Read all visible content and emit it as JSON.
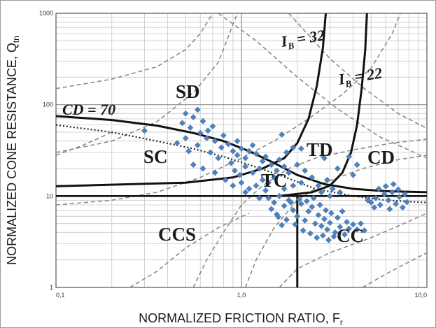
{
  "chart_data": {
    "type": "scatter",
    "xlabel": "NORMALIZED FRICTION RATIO, Fr",
    "xlabel_main": "NORMALIZED FRICTION RATIO, F",
    "xlabel_sub": "r",
    "ylabel_main": "NORMALIZED CONE RESISTANCE, Q",
    "ylabel_sub": "tn",
    "xscale": "log",
    "yscale": "log",
    "xlim": [
      0.1,
      10
    ],
    "ylim": [
      1,
      1000
    ],
    "grid": true,
    "x_ticks": [
      {
        "value": 0.1,
        "label": "0,1"
      },
      {
        "value": 1,
        "label": "1,0"
      },
      {
        "value": 10,
        "label": "10,0"
      }
    ],
    "y_ticks": [
      {
        "value": 1,
        "label": "1"
      },
      {
        "value": 10,
        "label": "10"
      },
      {
        "value": 100,
        "label": "100"
      },
      {
        "value": 1000,
        "label": "1000"
      }
    ],
    "zones": [
      "SD",
      "SC",
      "TD",
      "CD",
      "CCS",
      "CC",
      "TC"
    ],
    "curve_labels": [
      "CD = 70",
      "IB = 32",
      "IB = 22"
    ],
    "series": [
      {
        "marker": "diamond",
        "color": "#4F81BD",
        "points": [
          [
            0.5,
            80
          ],
          [
            0.55,
            73
          ],
          [
            0.58,
            88
          ],
          [
            0.62,
            66
          ],
          [
            0.53,
            56
          ],
          [
            0.6,
            49
          ],
          [
            0.48,
            63
          ],
          [
            0.66,
            52
          ],
          [
            0.7,
            58
          ],
          [
            0.5,
            43
          ],
          [
            0.45,
            38
          ],
          [
            0.52,
            31
          ],
          [
            0.58,
            36
          ],
          [
            0.65,
            43
          ],
          [
            0.72,
            40
          ],
          [
            0.78,
            34
          ],
          [
            0.85,
            37
          ],
          [
            0.8,
            46
          ],
          [
            0.9,
            31
          ],
          [
            0.95,
            28
          ],
          [
            1.0,
            33
          ],
          [
            1.05,
            26
          ],
          [
            1.1,
            31
          ],
          [
            0.88,
            23
          ],
          [
            0.75,
            26
          ],
          [
            0.68,
            30
          ],
          [
            0.95,
            40
          ],
          [
            1.15,
            36
          ],
          [
            1.2,
            29
          ],
          [
            1.3,
            24
          ],
          [
            1.25,
            20
          ],
          [
            1.15,
            18
          ],
          [
            1.05,
            21
          ],
          [
            0.98,
            17
          ],
          [
            0.92,
            19
          ],
          [
            1.35,
            27
          ],
          [
            1.45,
            22
          ],
          [
            1.55,
            19
          ],
          [
            1.6,
            25
          ],
          [
            1.7,
            21
          ],
          [
            1.8,
            18
          ],
          [
            1.5,
            16
          ],
          [
            1.4,
            14
          ],
          [
            1.3,
            15
          ],
          [
            1.2,
            13
          ],
          [
            1.1,
            12
          ],
          [
            1.0,
            14
          ],
          [
            0.9,
            13
          ],
          [
            0.82,
            15
          ],
          [
            1.75,
            30
          ],
          [
            1.9,
            34
          ],
          [
            2.0,
            22
          ],
          [
            2.2,
            19
          ],
          [
            2.4,
            16
          ],
          [
            2.1,
            14
          ],
          [
            1.9,
            13
          ],
          [
            1.7,
            12
          ],
          [
            2.6,
            13
          ],
          [
            2.9,
            15
          ],
          [
            3.1,
            12
          ],
          [
            3.4,
            11
          ],
          [
            3.0,
            10
          ],
          [
            2.7,
            11
          ],
          [
            1.6,
            10
          ],
          [
            1.5,
            8.5
          ],
          [
            1.45,
            7.2
          ],
          [
            1.55,
            6.3
          ],
          [
            1.7,
            7.8
          ],
          [
            1.8,
            9.0
          ],
          [
            1.9,
            7.0
          ],
          [
            2.0,
            6.0
          ],
          [
            2.1,
            8.2
          ],
          [
            2.2,
            5.4
          ],
          [
            2.3,
            6.8
          ],
          [
            2.4,
            7.6
          ],
          [
            2.5,
            5.0
          ],
          [
            2.6,
            6.2
          ],
          [
            2.7,
            4.7
          ],
          [
            2.8,
            5.6
          ],
          [
            2.9,
            4.3
          ],
          [
            3.0,
            5.1
          ],
          [
            3.2,
            4.0
          ],
          [
            3.4,
            4.6
          ],
          [
            3.6,
            3.8
          ],
          [
            3.8,
            4.4
          ],
          [
            2.15,
            4.2
          ],
          [
            2.35,
            3.9
          ],
          [
            2.55,
            3.5
          ],
          [
            2.75,
            3.7
          ],
          [
            2.95,
            3.3
          ],
          [
            3.15,
            3.6
          ],
          [
            1.95,
            4.9
          ],
          [
            1.75,
            5.5
          ],
          [
            1.65,
            4.8
          ],
          [
            1.58,
            5.9
          ],
          [
            1.85,
            8.5
          ],
          [
            2.05,
            9.2
          ],
          [
            2.25,
            8.8
          ],
          [
            2.45,
            9.5
          ],
          [
            2.65,
            8.0
          ],
          [
            2.85,
            7.0
          ],
          [
            3.05,
            6.5
          ],
          [
            3.3,
            5.8
          ],
          [
            3.5,
            6.8
          ],
          [
            3.7,
            5.2
          ],
          [
            4.0,
            4.9
          ],
          [
            4.2,
            4.3
          ],
          [
            4.4,
            5.0
          ],
          [
            4.6,
            4.2
          ],
          [
            1.4,
            9.5
          ],
          [
            1.35,
            11.5
          ],
          [
            5.0,
            8.5
          ],
          [
            5.3,
            9.5
          ],
          [
            5.6,
            8.0
          ],
          [
            5.9,
            10.5
          ],
          [
            6.2,
            9.0
          ],
          [
            6.5,
            11.0
          ],
          [
            6.8,
            8.2
          ],
          [
            7.1,
            9.8
          ],
          [
            7.4,
            7.5
          ],
          [
            7.8,
            8.6
          ],
          [
            5.5,
            12.0
          ],
          [
            6.0,
            12.8
          ],
          [
            6.6,
            13.5
          ],
          [
            7.0,
            11.8
          ],
          [
            4.8,
            9.0
          ],
          [
            5.2,
            7.5
          ],
          [
            6.3,
            7.2
          ],
          [
            7.6,
            10.5
          ],
          [
            0.3,
            52
          ],
          [
            0.55,
            22
          ],
          [
            0.62,
            20
          ],
          [
            1.65,
            47
          ],
          [
            2.1,
            33
          ],
          [
            3.8,
            27
          ],
          [
            4.2,
            22
          ],
          [
            3.3,
            20
          ],
          [
            4.0,
            17
          ],
          [
            2.8,
            26
          ],
          [
            0.72,
            18
          ],
          [
            1.05,
            11
          ],
          [
            1.25,
            9.5
          ]
        ]
      }
    ]
  }
}
